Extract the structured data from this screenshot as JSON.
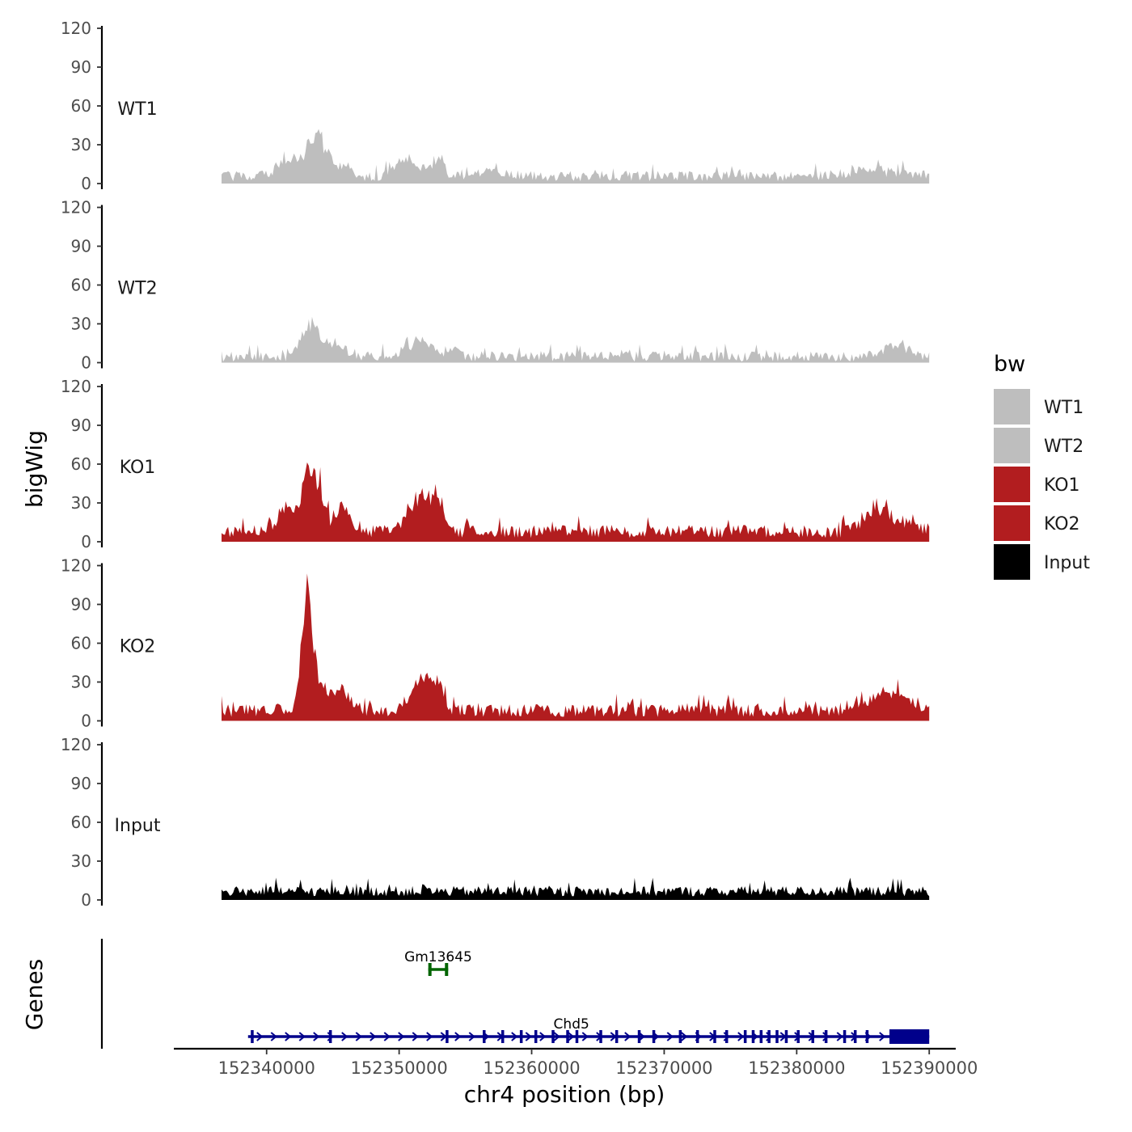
{
  "chart_data": {
    "type": "area",
    "title": "",
    "ylabel": "bigWig",
    "xlabel": "chr4 position (bp)",
    "genes_label": "Genes",
    "xlim": [
      152333000,
      152392000
    ],
    "data_xlim": [
      152336600,
      152390000
    ],
    "ylim": [
      0,
      120
    ],
    "yticks": [
      0,
      30,
      60,
      90,
      120
    ],
    "ytick_labels": [
      "0",
      "30",
      "60",
      "90",
      "120"
    ],
    "xticks": [
      152340000,
      152350000,
      152360000,
      152370000,
      152380000,
      152390000
    ],
    "xtick_labels": [
      "152340000",
      "152350000",
      "152360000",
      "152370000",
      "152380000",
      "152390000"
    ],
    "legend": {
      "title": "bw",
      "position": "right"
    },
    "series": [
      {
        "name": "WT1",
        "color": "#bebebe",
        "baseline": 5,
        "noise": 4,
        "peaks": [
          [
            152343700,
            32,
            1100
          ],
          [
            152341500,
            13,
            900
          ],
          [
            152346000,
            8,
            700
          ],
          [
            152350500,
            14,
            1000
          ],
          [
            152352700,
            12,
            900
          ],
          [
            152357000,
            4,
            1500
          ],
          [
            152386000,
            4,
            3000
          ]
        ]
      },
      {
        "name": "WT2",
        "color": "#bebebe",
        "baseline": 4,
        "noise": 4,
        "peaks": [
          [
            152343400,
            26,
            900
          ],
          [
            152345200,
            10,
            1000
          ],
          [
            152351500,
            12,
            1300
          ],
          [
            152354000,
            4,
            800
          ],
          [
            152387500,
            8,
            1500
          ]
        ]
      },
      {
        "name": "KO1",
        "color": "#b21d1f",
        "baseline": 7,
        "noise": 5,
        "peaks": [
          [
            152343400,
            50,
            900
          ],
          [
            152341500,
            18,
            900
          ],
          [
            152345700,
            18,
            900
          ],
          [
            152351700,
            26,
            1300
          ],
          [
            152353100,
            14,
            600
          ],
          [
            152387000,
            12,
            1800
          ],
          [
            152385800,
            8,
            900
          ]
        ]
      },
      {
        "name": "KO2",
        "color": "#b21d1f",
        "baseline": 7,
        "noise": 5,
        "peaks": [
          [
            152343000,
            75,
            500
          ],
          [
            152343600,
            30,
            1100
          ],
          [
            152345700,
            14,
            900
          ],
          [
            152351700,
            28,
            1000
          ],
          [
            152353000,
            18,
            500
          ],
          [
            152387500,
            12,
            1700
          ],
          [
            152385000,
            8,
            1200
          ]
        ]
      },
      {
        "name": "Input",
        "color": "#000000",
        "baseline": 6,
        "noise": 4,
        "peaks": []
      }
    ],
    "genes": [
      {
        "name": "Gm13645",
        "color": "#006400",
        "start": 152352200,
        "end": 152353700,
        "row": 1,
        "exons": []
      },
      {
        "name": "Chd5",
        "color": "#00008b",
        "start": 152338600,
        "end": 152390000,
        "row": 2,
        "exons": [
          152338900,
          152344800,
          152353600,
          152356400,
          152357800,
          152359200,
          152360300,
          152361600,
          152362700,
          152363400,
          152365200,
          152366400,
          152368100,
          152369200,
          152371200,
          152372500,
          152373800,
          152374700,
          152376100,
          152376700,
          152377300,
          152377900,
          152378500,
          152379200,
          152380100,
          152381200,
          152382200,
          152383600,
          152384400,
          152385300
        ]
      }
    ]
  }
}
